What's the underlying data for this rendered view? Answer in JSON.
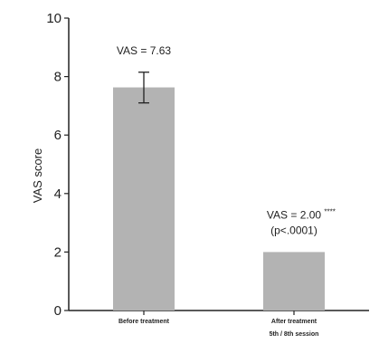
{
  "chart_data": {
    "type": "bar",
    "title": "",
    "xlabel": "",
    "ylabel": "VAS score",
    "ylim": [
      0,
      10
    ],
    "yticks": [
      0,
      2,
      4,
      6,
      8,
      10
    ],
    "categories": [
      "Before treatment",
      "After treatment"
    ],
    "category_sublabels": [
      "",
      "5th / 8th session"
    ],
    "values": [
      7.63,
      2.0
    ],
    "error_bars": [
      [
        7.1,
        8.15
      ],
      null
    ],
    "annotations": [
      {
        "category_index": 0,
        "lines": [
          "VAS = 7.63"
        ],
        "superscript": ""
      },
      {
        "category_index": 1,
        "lines": [
          "VAS = 2.00",
          "(p<.0001)"
        ],
        "superscript": "****"
      }
    ],
    "grid": false,
    "bar_color": "#b3b3b3"
  }
}
